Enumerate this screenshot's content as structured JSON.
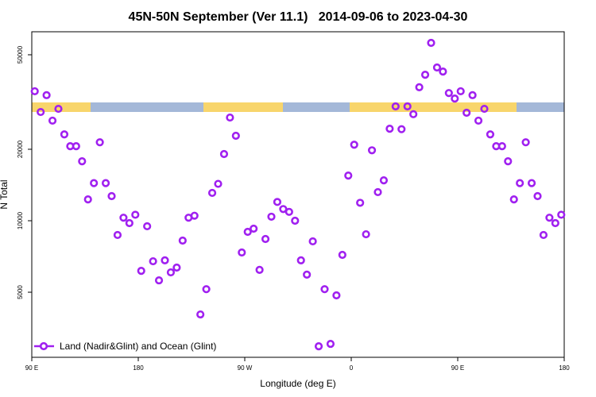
{
  "chart_data": {
    "type": "scatter",
    "title": "45N-50N September (Ver 11.1)   2014-09-06 to 2023-04-30",
    "x_label": "Longitude (deg E)",
    "y_label": "N Total",
    "yscale": "log",
    "legend": "lower left",
    "xlim": [
      90,
      540
    ],
    "ylim": [
      2660,
      62500
    ],
    "xticks": [
      {
        "value": 90,
        "label": "90 E"
      },
      {
        "value": 180,
        "label": "180"
      },
      {
        "value": 270,
        "label": "90 W"
      },
      {
        "value": 360,
        "label": "0"
      },
      {
        "value": 450,
        "label": "90 E"
      },
      {
        "value": 540,
        "label": "180"
      }
    ],
    "yticks": [
      5000,
      10000,
      20000,
      50000
    ],
    "x": [
      92.5,
      97.5,
      102.5,
      107.5,
      112.5,
      117.5,
      122.5,
      127.5,
      132.5,
      137.5,
      142.5,
      147.5,
      152.5,
      157.5,
      162.5,
      167.5,
      172.5,
      177.5,
      182.5,
      187.5,
      192.5,
      197.5,
      202.5,
      207.5,
      212.5,
      217.5,
      222.5,
      227.5,
      232.5,
      237.5,
      242.5,
      247.5,
      252.5,
      257.5,
      262.5,
      267.5,
      272.5,
      277.5,
      282.5,
      287.5,
      292.5,
      297.5,
      302.5,
      307.5,
      312.5,
      317.5,
      322.5,
      327.5,
      332.5,
      337.5,
      342.5,
      347.5,
      352.5,
      357.5,
      362.5,
      367.5,
      372.5,
      377.5,
      382.5,
      387.5,
      392.5,
      397.5,
      402.5,
      407.5,
      412.5,
      417.5,
      422.5,
      427.5,
      432.5,
      437.5,
      442.5,
      447.5,
      452.5,
      457.5,
      462.5,
      467.5,
      472.5,
      477.5,
      482.5,
      487.5,
      492.5,
      497.5,
      502.5,
      507.5,
      512.5,
      517.5,
      522.5,
      527.5,
      532.5,
      537.5
    ],
    "series": [
      {
        "name": "Land (Nadir&Glint) and Ocean (Glint)",
        "color": "#a020f0",
        "values": [
          35100,
          28700,
          33800,
          26400,
          29600,
          23100,
          20600,
          20600,
          17800,
          12300,
          14400,
          21400,
          14400,
          12700,
          8710,
          10300,
          9770,
          10600,
          6150,
          9480,
          6750,
          5610,
          6810,
          6060,
          6350,
          8250,
          10300,
          10500,
          4030,
          5150,
          13100,
          14300,
          19100,
          27200,
          22800,
          7350,
          8980,
          9260,
          6210,
          8380,
          10400,
          12000,
          11200,
          10900,
          10000,
          6810,
          5930,
          8190,
          2960,
          5150,
          3030,
          4850,
          7180,
          15500,
          20900,
          11900,
          8770,
          19800,
          13200,
          14800,
          24400,
          30300,
          24300,
          30300,
          28100,
          36500,
          41200,
          56100,
          44200,
          42500,
          34500,
          32700,
          35100,
          28500,
          33800,
          26400,
          29600,
          23100,
          20600,
          20600,
          17800,
          12300,
          14400,
          21400,
          14400,
          12700,
          8710,
          10300,
          9770,
          10600
        ]
      }
    ]
  }
}
